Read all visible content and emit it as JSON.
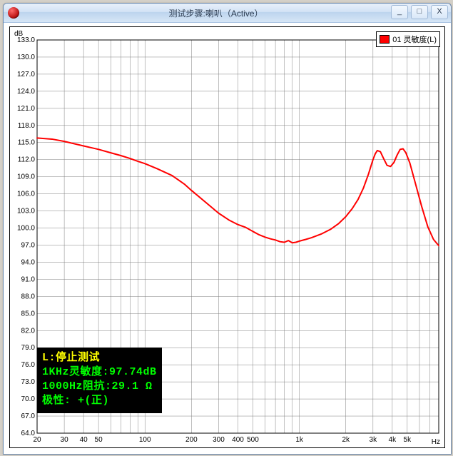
{
  "window": {
    "title": "测试步骤:喇叭（Active）",
    "min": "_",
    "max": "□",
    "close": "X"
  },
  "chart": {
    "type": "line",
    "background_color": "#ffffff",
    "grid_color": "#808080",
    "axis_color": "#000000",
    "y": {
      "unit": "dB",
      "min": 64,
      "max": 133,
      "tick_step": 3,
      "label_fontsize": 10,
      "ticks": [
        64,
        67,
        70,
        73,
        76,
        79,
        82,
        85,
        88,
        91,
        94,
        97,
        100,
        103,
        106,
        109,
        112,
        115,
        118,
        121,
        124,
        127,
        130,
        133
      ]
    },
    "x": {
      "unit": "Hz",
      "scale": "log",
      "min": 20,
      "max": 8000,
      "label_fontsize": 10,
      "ticks_major": [
        20,
        30,
        40,
        50,
        100,
        200,
        300,
        400,
        500,
        1000,
        2000,
        3000,
        4000,
        5000
      ],
      "tick_labels": [
        "20",
        "30",
        "40",
        "50",
        "100",
        "200",
        "300",
        "400",
        "500",
        "1k",
        "2k",
        "3k",
        "4k",
        "5k"
      ]
    },
    "series": [
      {
        "name": "01 灵敏度(L)",
        "color": "#ff0000",
        "line_width": 2,
        "points": [
          [
            20,
            115.8
          ],
          [
            25,
            115.6
          ],
          [
            30,
            115.2
          ],
          [
            40,
            114.4
          ],
          [
            50,
            113.8
          ],
          [
            60,
            113.2
          ],
          [
            70,
            112.7
          ],
          [
            80,
            112.2
          ],
          [
            90,
            111.7
          ],
          [
            100,
            111.3
          ],
          [
            120,
            110.4
          ],
          [
            150,
            109.2
          ],
          [
            180,
            107.7
          ],
          [
            200,
            106.6
          ],
          [
            250,
            104.4
          ],
          [
            300,
            102.6
          ],
          [
            350,
            101.4
          ],
          [
            400,
            100.6
          ],
          [
            450,
            100.1
          ],
          [
            500,
            99.4
          ],
          [
            550,
            98.8
          ],
          [
            600,
            98.4
          ],
          [
            650,
            98.1
          ],
          [
            700,
            97.9
          ],
          [
            750,
            97.6
          ],
          [
            800,
            97.5
          ],
          [
            850,
            97.8
          ],
          [
            900,
            97.4
          ],
          [
            950,
            97.5
          ],
          [
            1000,
            97.7
          ],
          [
            1100,
            98.0
          ],
          [
            1200,
            98.3
          ],
          [
            1400,
            99.0
          ],
          [
            1600,
            99.8
          ],
          [
            1800,
            100.8
          ],
          [
            2000,
            102.0
          ],
          [
            2200,
            103.4
          ],
          [
            2400,
            105.0
          ],
          [
            2600,
            107.0
          ],
          [
            2800,
            109.4
          ],
          [
            3000,
            112.0
          ],
          [
            3100,
            113.0
          ],
          [
            3200,
            113.6
          ],
          [
            3350,
            113.4
          ],
          [
            3500,
            112.3
          ],
          [
            3700,
            111.0
          ],
          [
            3900,
            110.8
          ],
          [
            4100,
            111.5
          ],
          [
            4300,
            112.8
          ],
          [
            4500,
            113.8
          ],
          [
            4700,
            113.9
          ],
          [
            4900,
            113.2
          ],
          [
            5200,
            111.4
          ],
          [
            5600,
            108.2
          ],
          [
            6200,
            103.8
          ],
          [
            6800,
            100.2
          ],
          [
            7400,
            98.0
          ],
          [
            8000,
            96.9
          ]
        ]
      }
    ],
    "legend": {
      "position": "top-right",
      "border_color": "#000000",
      "swatch_border": "#000000"
    },
    "info_box": {
      "background": "#000000",
      "font_family": "SimSun",
      "font_size": 15,
      "pos_x_hz": 20,
      "pos_y_db_top": 79,
      "lines": [
        {
          "text": "L:停止测试",
          "color": "#ffff00"
        },
        {
          "text": "1KHz灵敏度:97.74dB",
          "color": "#00ff00"
        },
        {
          "text": "1000Hz阻抗:29.1 Ω",
          "color": "#00ff00"
        },
        {
          "text": "极性: +(正)",
          "color": "#00ff00"
        }
      ]
    }
  }
}
